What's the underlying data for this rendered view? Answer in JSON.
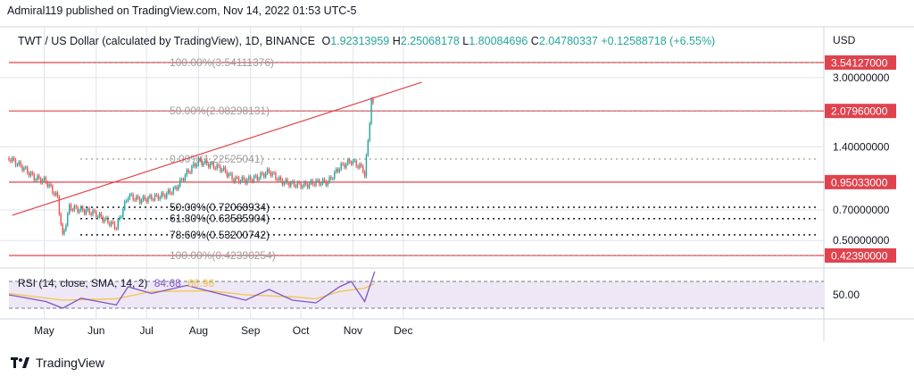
{
  "publish": {
    "text": "Admiral119 published on TradingView.com, Nov 14, 2022 01:53 UTC-5"
  },
  "header": {
    "title": "TWT / US Dollar (calculated by TradingView), 1D, BINANCE",
    "o_label": "O",
    "o_value": "1.92313959",
    "h_label": "H",
    "h_value": "2.25068178",
    "l_label": "L",
    "l_value": "1.80084696",
    "c_label": "C",
    "c_value": "2.04780337",
    "change": "+0.12588718 (+6.55%)"
  },
  "currency": "USD",
  "rsi": {
    "title": "RSI (14, close, SMA, 14, 2)",
    "value": "84.68",
    "sma_value": "66.96",
    "axis_label": "50.00"
  },
  "footer": {
    "brand": "TradingView",
    "logo_icon": "tradingview-logo-icon"
  },
  "colors": {
    "up": "#26a69a",
    "down": "#ef5350",
    "level_line": "#e0434e",
    "trend_line": "#e0434e",
    "fib_dotted": "#9e9e9e",
    "fib_dark": "#131722",
    "rsi_line": "#7e57c2",
    "rsi_sma": "#f7c443",
    "rsi_band": "#ede7f6",
    "grid": "#e0e3eb",
    "price_badge": "#e0434e"
  },
  "chart_data": {
    "type": "candlestick",
    "symbol": "TWT / US Dollar",
    "timeframe": "1D",
    "y_scale": "log",
    "x_ticks": [
      "May",
      "Jun",
      "Jul",
      "Aug",
      "Sep",
      "Oct",
      "Nov",
      "Dec"
    ],
    "y_ticks": [
      "3.00000000",
      "1.40000000",
      "0.70000000",
      "0.50000000"
    ],
    "price_levels": [
      {
        "label": "3.54127000",
        "value": 3.54127
      },
      {
        "label": "2.07960000",
        "value": 2.0796
      },
      {
        "label": "0.95033000",
        "value": 0.95033
      },
      {
        "label": "0.42390000",
        "value": 0.4239
      }
    ],
    "fib_levels": [
      {
        "label": "100.00%(3.54111376)",
        "value": 3.54111376
      },
      {
        "label": "50.00%(2.08298131)",
        "value": 2.08298131
      },
      {
        "label": "0.00%(1.22525041)",
        "value": 1.22525041
      },
      {
        "label": "50.00%(0.72068934)",
        "value": 0.72068934
      },
      {
        "label": "61.80%(0.63585904)",
        "value": 0.63585904
      },
      {
        "label": "78.60%(0.53200742)",
        "value": 0.53200742
      },
      {
        "label": "100.00%(0.42390254)",
        "value": 0.42390254
      }
    ],
    "trend_line": [
      {
        "date": "2022-04-12",
        "value": 0.66
      },
      {
        "date": "2022-12-12",
        "value": 2.85
      }
    ],
    "close_series": [
      {
        "date": "2022-04-10",
        "close": 1.24
      },
      {
        "date": "2022-04-18",
        "close": 1.12
      },
      {
        "date": "2022-04-25",
        "close": 1.0
      },
      {
        "date": "2022-05-02",
        "close": 0.96
      },
      {
        "date": "2022-05-09",
        "close": 0.8
      },
      {
        "date": "2022-05-12",
        "close": 0.52
      },
      {
        "date": "2022-05-16",
        "close": 0.72
      },
      {
        "date": "2022-05-23",
        "close": 0.7
      },
      {
        "date": "2022-05-30",
        "close": 0.68
      },
      {
        "date": "2022-06-06",
        "close": 0.63
      },
      {
        "date": "2022-06-13",
        "close": 0.58
      },
      {
        "date": "2022-06-20",
        "close": 0.82
      },
      {
        "date": "2022-06-27",
        "close": 0.78
      },
      {
        "date": "2022-07-04",
        "close": 0.8
      },
      {
        "date": "2022-07-11",
        "close": 0.82
      },
      {
        "date": "2022-07-18",
        "close": 0.88
      },
      {
        "date": "2022-07-25",
        "close": 1.05
      },
      {
        "date": "2022-08-01",
        "close": 1.2
      },
      {
        "date": "2022-08-08",
        "close": 1.15
      },
      {
        "date": "2022-08-15",
        "close": 1.1
      },
      {
        "date": "2022-08-22",
        "close": 0.98
      },
      {
        "date": "2022-08-29",
        "close": 0.97
      },
      {
        "date": "2022-09-05",
        "close": 1.0
      },
      {
        "date": "2022-09-12",
        "close": 1.07
      },
      {
        "date": "2022-09-19",
        "close": 0.96
      },
      {
        "date": "2022-09-26",
        "close": 0.93
      },
      {
        "date": "2022-10-03",
        "close": 0.92
      },
      {
        "date": "2022-10-10",
        "close": 0.95
      },
      {
        "date": "2022-10-17",
        "close": 0.95
      },
      {
        "date": "2022-10-24",
        "close": 1.12
      },
      {
        "date": "2022-10-31",
        "close": 1.2
      },
      {
        "date": "2022-11-07",
        "close": 1.1
      },
      {
        "date": "2022-11-08",
        "close": 1.02
      },
      {
        "date": "2022-11-10",
        "close": 1.5
      },
      {
        "date": "2022-11-12",
        "close": 2.35
      },
      {
        "date": "2022-11-14",
        "close": 2.05
      }
    ],
    "rsi_series": [
      {
        "date": "2022-04-10",
        "rsi": 50
      },
      {
        "date": "2022-05-02",
        "rsi": 40
      },
      {
        "date": "2022-05-12",
        "rsi": 30
      },
      {
        "date": "2022-05-23",
        "rsi": 45
      },
      {
        "date": "2022-06-13",
        "rsi": 35
      },
      {
        "date": "2022-06-20",
        "rsi": 62
      },
      {
        "date": "2022-07-04",
        "rsi": 52
      },
      {
        "date": "2022-07-25",
        "rsi": 64
      },
      {
        "date": "2022-08-08",
        "rsi": 55
      },
      {
        "date": "2022-08-29",
        "rsi": 42
      },
      {
        "date": "2022-09-12",
        "rsi": 58
      },
      {
        "date": "2022-09-26",
        "rsi": 42
      },
      {
        "date": "2022-10-10",
        "rsi": 38
      },
      {
        "date": "2022-10-24",
        "rsi": 62
      },
      {
        "date": "2022-10-31",
        "rsi": 70
      },
      {
        "date": "2022-11-08",
        "rsi": 40
      },
      {
        "date": "2022-11-14",
        "rsi": 84.68
      }
    ],
    "rsi_sma_series": [
      {
        "date": "2022-04-10",
        "value": 52
      },
      {
        "date": "2022-05-12",
        "value": 42
      },
      {
        "date": "2022-06-13",
        "value": 44
      },
      {
        "date": "2022-07-04",
        "value": 55
      },
      {
        "date": "2022-08-08",
        "value": 56
      },
      {
        "date": "2022-08-29",
        "value": 50
      },
      {
        "date": "2022-09-26",
        "value": 47
      },
      {
        "date": "2022-10-10",
        "value": 44
      },
      {
        "date": "2022-10-24",
        "value": 55
      },
      {
        "date": "2022-11-08",
        "value": 60
      },
      {
        "date": "2022-11-14",
        "value": 66.96
      }
    ],
    "rsi_band": [
      30,
      70
    ],
    "grid": true
  }
}
